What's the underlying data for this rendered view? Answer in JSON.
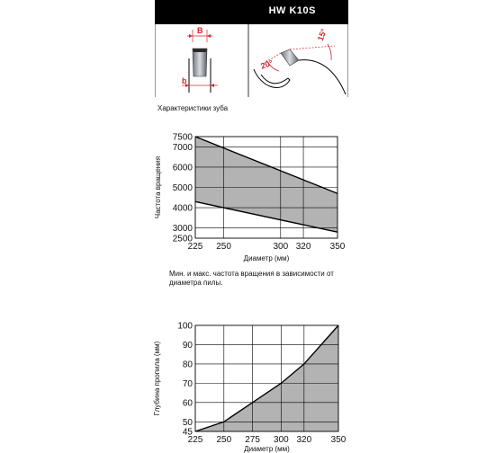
{
  "header": {
    "title": "HW K10S"
  },
  "tooth": {
    "caption": "Характеристики зуба",
    "label_width_top": "B",
    "label_width_bottom": "b",
    "label_angle_top": "15°",
    "label_angle_bottom": "20°",
    "accent_color": "#d4262c"
  },
  "chart_data": [
    {
      "type": "area",
      "title": "",
      "xlabel": "Диаметр (мм)",
      "ylabel": "Частота вращения",
      "caption": "Мин. и макс. частота вращения в зависимости от диаметра пилы.",
      "x_ticks": [
        225,
        250,
        300,
        320,
        350
      ],
      "y_ticks": [
        2500,
        3000,
        4000,
        5000,
        6000,
        7000,
        7500
      ],
      "xlim": [
        225,
        350
      ],
      "ylim": [
        2500,
        7500
      ],
      "grid": true,
      "fill_color": "#b3b3b3",
      "series": [
        {
          "name": "",
          "x": [
            225,
            350
          ],
          "values": [
            7500,
            4700
          ]
        },
        {
          "name": "",
          "x": [
            225,
            350
          ],
          "values": [
            4300,
            2800
          ]
        }
      ]
    },
    {
      "type": "area",
      "title": "",
      "xlabel": "Диаметр (мм)",
      "ylabel": "Глубина пропила (мм)",
      "x_ticks": [
        225,
        250,
        275,
        300,
        320,
        350
      ],
      "y_ticks": [
        45,
        50,
        60,
        70,
        80,
        90,
        100
      ],
      "xlim": [
        225,
        350
      ],
      "ylim": [
        45,
        100
      ],
      "grid": true,
      "fill_color": "#b3b3b3",
      "series": [
        {
          "name": "",
          "x": [
            225,
            250,
            275,
            300,
            320,
            350
          ],
          "values": [
            45,
            50,
            60,
            70,
            80,
            100
          ]
        }
      ]
    }
  ]
}
